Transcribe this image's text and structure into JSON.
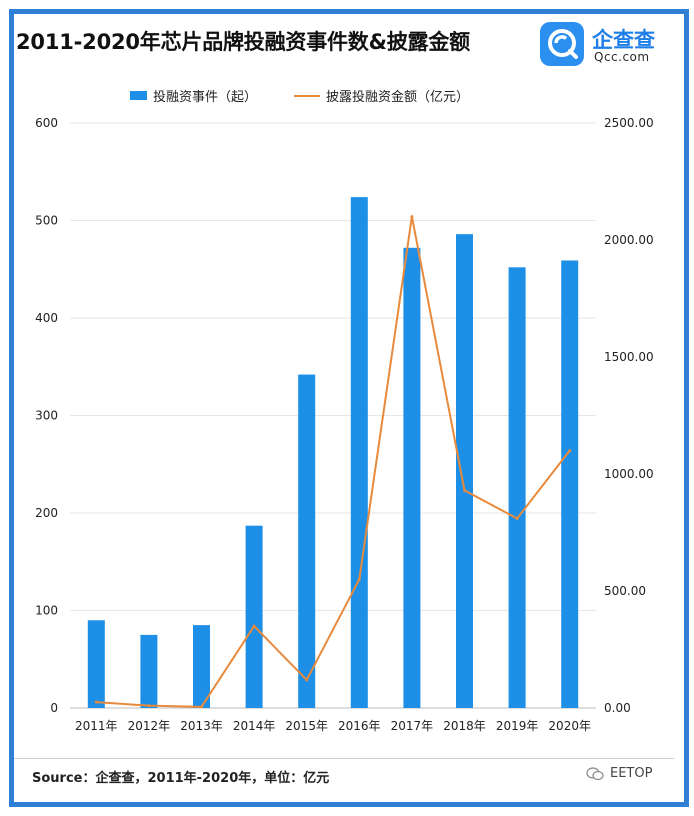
{
  "title": "2011-2020年芯片品牌投融资事件数&披露金额",
  "logo": {
    "cn": "企查查",
    "en": "Qcc.com"
  },
  "source": "Source：企查查，2011年-2020年，单位：亿元",
  "watermark": "EETOP",
  "colors": {
    "bar": "#1e8fe6",
    "line": "#e88a3c",
    "frame": "#2f7fd6"
  },
  "chart_data": {
    "type": "bar",
    "categories": [
      "2011年",
      "2012年",
      "2013年",
      "2014年",
      "2015年",
      "2016年",
      "2017年",
      "2018年",
      "2019年",
      "2020年"
    ],
    "series": [
      {
        "name": "投融资事件（起）",
        "type": "bar",
        "axis": "left",
        "values": [
          90,
          75,
          85,
          187,
          342,
          524,
          472,
          486,
          452,
          459
        ]
      },
      {
        "name": "披露投融资金额（亿元）",
        "type": "line",
        "axis": "right",
        "values": [
          25,
          10,
          5,
          350,
          120,
          550,
          2100,
          930,
          810,
          1100
        ]
      }
    ],
    "y_left": {
      "range": [
        0,
        600
      ],
      "ticks": [
        "0",
        "100",
        "200",
        "300",
        "400",
        "500",
        "600"
      ]
    },
    "y_right": {
      "range": [
        0,
        2500
      ],
      "ticks": [
        "0.00",
        "500.00",
        "1000.00",
        "1500.00",
        "2000.00",
        "2500.00"
      ]
    },
    "grid": true,
    "legend_position": "top"
  }
}
